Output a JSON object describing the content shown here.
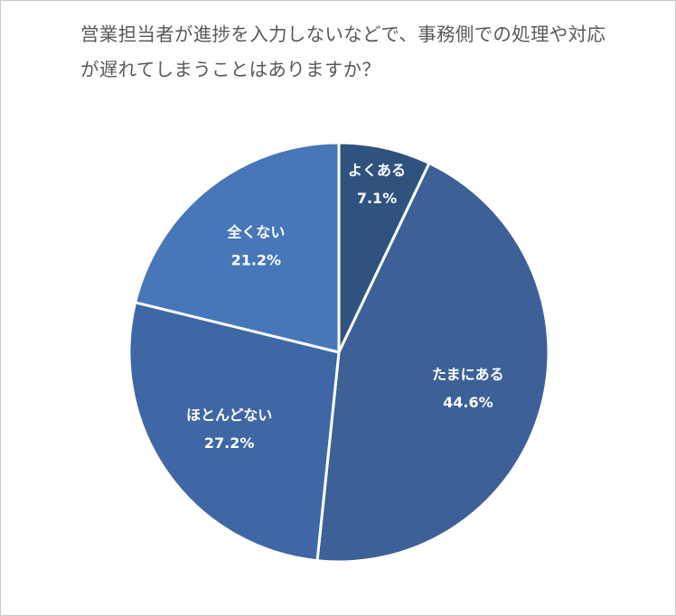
{
  "chart_data": {
    "type": "pie",
    "title": "営業担当者が進捗を入力しないなどで、事務側での処理や対応が遅れてしまうことはありますか？",
    "categories": [
      "よくある",
      "たまにある",
      "ほとんどない",
      "全くない"
    ],
    "values": [
      7.1,
      44.6,
      27.2,
      21.2
    ],
    "value_labels": [
      "7.1%",
      "44.6%",
      "27.2%",
      "21.2%"
    ],
    "colors": [
      "#30527f",
      "#3d6096",
      "#3f67a5",
      "#4777b8"
    ]
  }
}
